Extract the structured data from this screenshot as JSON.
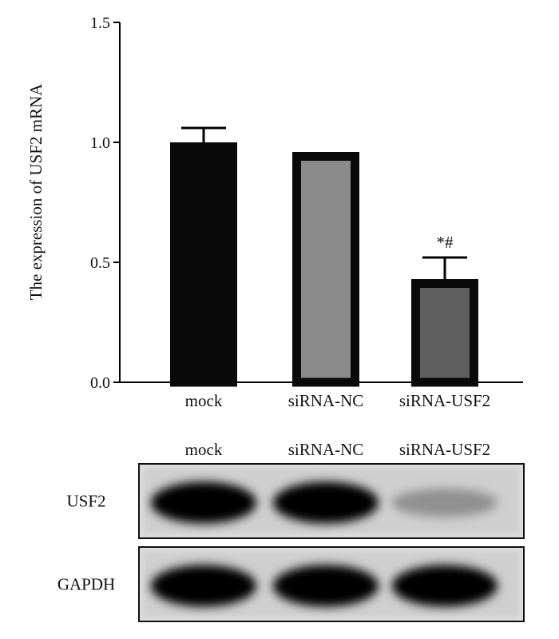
{
  "chart_data": {
    "type": "bar",
    "ylabel": "The expression of USF2 mRNA",
    "xlabel": "",
    "ylim": [
      0,
      1.5
    ],
    "yticks": [
      "0.0",
      "0.5",
      "1.0",
      "1.5"
    ],
    "categories": [
      "mock",
      "siRNA-NC",
      "siRNA-USF2"
    ],
    "values": [
      1.0,
      0.96,
      0.43
    ],
    "errors": [
      0.06,
      0.0,
      0.09
    ],
    "bar_fill_colors": [
      "#0a0a0a",
      "#8a8a8a",
      "#5e5e5e"
    ],
    "bar_edge_color": "#0a0a0a",
    "annotations": [
      {
        "category": "siRNA-USF2",
        "text": "*#"
      }
    ],
    "grid": false
  },
  "blot": {
    "lane_labels": [
      "mock",
      "siRNA-NC",
      "siRNA-USF2"
    ],
    "rows": [
      {
        "label": "USF2",
        "intensity": [
          1.0,
          1.0,
          0.25
        ]
      },
      {
        "label": "GAPDH",
        "intensity": [
          1.0,
          1.0,
          1.0
        ]
      }
    ]
  }
}
